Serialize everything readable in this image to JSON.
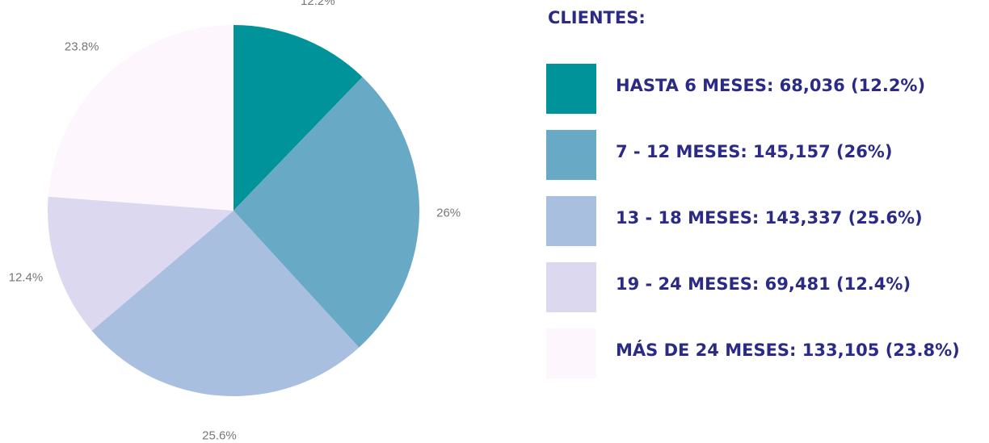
{
  "chart_data": {
    "type": "pie",
    "legend_title": "CLIENTES:",
    "categories": [
      "HASTA 6 MESES: 68,036 (12.2%)",
      "7 - 12 MESES:  145,157 (26%)",
      "13 - 18 MESES: 143,337 (25.6%)",
      "19 - 24 MESES: 69,481 (12.4%)",
      "MÁS DE 24 MESES: 133,105 (23.8%)"
    ],
    "values": [
      12.2,
      26,
      25.6,
      12.4,
      23.8
    ],
    "value_labels": [
      "12.2%",
      "26%",
      "25.6%",
      "12.4%",
      "23.8%"
    ],
    "colors": [
      "#00939a",
      "#68a9c6",
      "#a9bfe0",
      "#dcd8f0",
      "#fdf6fd"
    ],
    "legend": "right"
  }
}
